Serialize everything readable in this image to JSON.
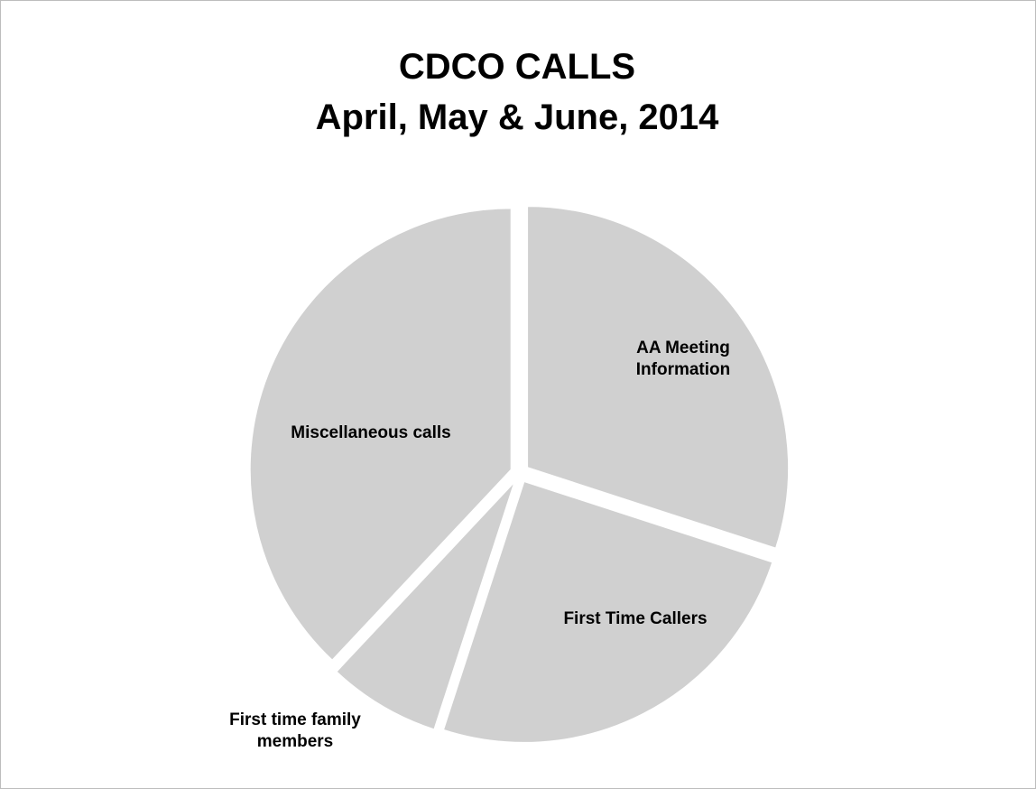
{
  "chart_data": {
    "type": "pie",
    "title": "CDCO CALLS",
    "subtitle": "April, May & June, 2014",
    "style": {
      "slice_color": "#d0d0d0",
      "exploded": true
    },
    "slices": [
      {
        "label": [
          "AA Meeting",
          "Information"
        ],
        "value": 30
      },
      {
        "label": [
          "First Time Callers"
        ],
        "value": 25
      },
      {
        "label": [
          "First time family",
          "members"
        ],
        "value": 7
      },
      {
        "label": [
          "Miscellaneous calls"
        ],
        "value": 38
      }
    ]
  }
}
